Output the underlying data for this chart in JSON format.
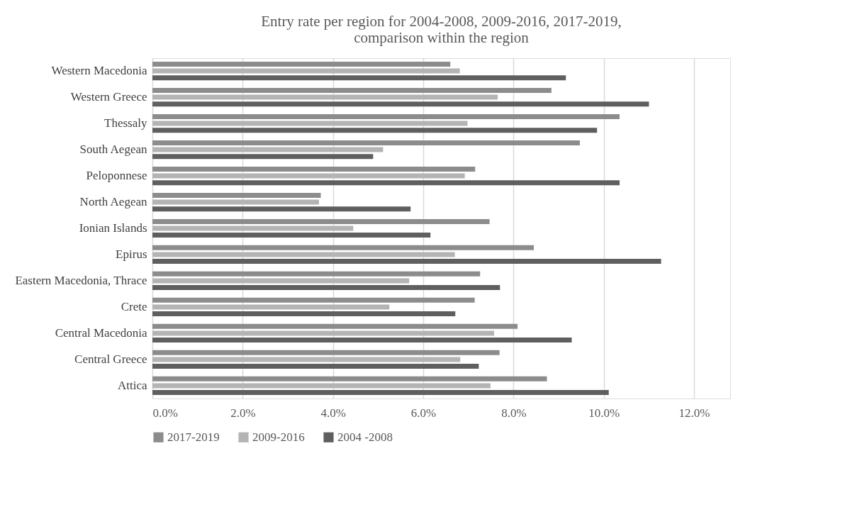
{
  "chart_data": {
    "type": "bar",
    "orientation": "horizontal",
    "title": "Entry rate per region for 2004-2008, 2009-2016, 2017-2019, comparison within the region",
    "categories": [
      "Western Macedonia",
      "Western Greece",
      "Thessaly",
      "South Aegean ",
      "Peloponnese",
      "North Aegean ",
      "Ionian Islands",
      "Epirus",
      "Eastern Macedonia, Thrace",
      "Crete",
      "Central Macedonia",
      "Central Greece",
      "Attica"
    ],
    "series": [
      {
        "name": "2017-2019",
        "color": "#8c8c8c",
        "values": [
          6.6,
          8.84,
          10.35,
          9.47,
          7.15,
          3.73,
          7.47,
          8.45,
          7.26,
          7.14,
          8.09,
          7.69,
          8.74
        ]
      },
      {
        "name": "2009-2016",
        "color": "#b4b4b4",
        "values": [
          6.81,
          7.65,
          6.98,
          5.11,
          6.92,
          3.69,
          4.45,
          6.7,
          5.69,
          5.25,
          7.57,
          6.82,
          7.49
        ]
      },
      {
        "name": "2004 -2008",
        "color": "#5f5f5f",
        "values": [
          9.16,
          11.0,
          9.85,
          4.89,
          10.35,
          5.72,
          6.16,
          11.27,
          7.7,
          6.71,
          9.29,
          7.23,
          10.11
        ]
      }
    ],
    "xlim": [
      0,
      12.8
    ],
    "xticks": [
      {
        "value": 0,
        "label": "0.0%"
      },
      {
        "value": 2,
        "label": "2.0%"
      },
      {
        "value": 4,
        "label": "4.0%"
      },
      {
        "value": 6,
        "label": "6.0%"
      },
      {
        "value": 8,
        "label": "8.0%"
      },
      {
        "value": 10,
        "label": "10.0%"
      },
      {
        "value": 12,
        "label": "12.0%"
      }
    ],
    "grid": "x",
    "legend": "bottom"
  }
}
